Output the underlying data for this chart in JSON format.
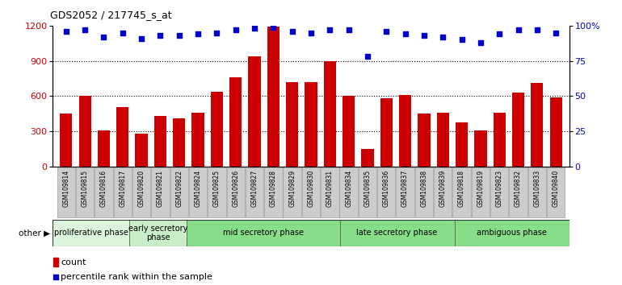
{
  "title": "GDS2052 / 217745_s_at",
  "samples": [
    "GSM109814",
    "GSM109815",
    "GSM109816",
    "GSM109817",
    "GSM109820",
    "GSM109821",
    "GSM109822",
    "GSM109824",
    "GSM109825",
    "GSM109826",
    "GSM109827",
    "GSM109828",
    "GSM109829",
    "GSM109830",
    "GSM109831",
    "GSM109834",
    "GSM109835",
    "GSM109836",
    "GSM109837",
    "GSM109838",
    "GSM109839",
    "GSM109818",
    "GSM109819",
    "GSM109823",
    "GSM109832",
    "GSM109833",
    "GSM109840"
  ],
  "counts": [
    450,
    600,
    310,
    510,
    280,
    430,
    410,
    460,
    640,
    760,
    940,
    1190,
    720,
    720,
    900,
    600,
    150,
    580,
    610,
    450,
    460,
    380,
    310,
    460,
    630,
    710,
    590
  ],
  "percentile": [
    96,
    97,
    92,
    95,
    91,
    93,
    93,
    94,
    95,
    97,
    98,
    99,
    96,
    95,
    97,
    97,
    78,
    96,
    94,
    93,
    92,
    90,
    88,
    94,
    97,
    97,
    95
  ],
  "bar_color": "#cc0000",
  "dot_color": "#0000cc",
  "ylim_left": [
    0,
    1200
  ],
  "ylim_right": [
    0,
    100
  ],
  "yticks_left": [
    0,
    300,
    600,
    900,
    1200
  ],
  "yticks_right": [
    0,
    25,
    50,
    75,
    100
  ],
  "ytick_right_labels": [
    "0",
    "25",
    "50",
    "75",
    "100%"
  ],
  "grid_lines": [
    300,
    600,
    900
  ],
  "phases": [
    {
      "label": "proliferative phase",
      "start": 0,
      "end": 4,
      "color": "#ddf5dd"
    },
    {
      "label": "early secretory\nphase",
      "start": 4,
      "end": 7,
      "color": "#c8eec8"
    },
    {
      "label": "mid secretory phase",
      "start": 7,
      "end": 15,
      "color": "#88dd88"
    },
    {
      "label": "late secretory phase",
      "start": 15,
      "end": 21,
      "color": "#88dd88"
    },
    {
      "label": "ambiguous phase",
      "start": 21,
      "end": 27,
      "color": "#88dd88"
    }
  ],
  "other_label": "other",
  "legend_count_label": "count",
  "legend_pct_label": "percentile rank within the sample",
  "tick_bg_color": "#cccccc",
  "fig_width": 7.7,
  "fig_height": 3.54,
  "dpi": 100
}
